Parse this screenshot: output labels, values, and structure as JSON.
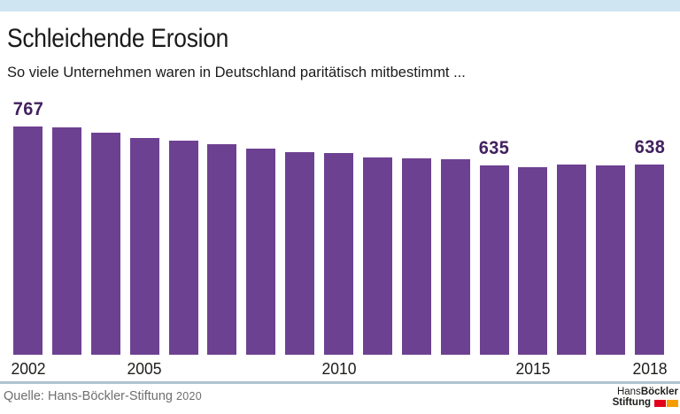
{
  "chart_data": {
    "type": "bar",
    "title": "Schleichende Erosion",
    "subtitle": "So viele Unternehmen waren in Deutschland paritätisch mitbestimmt ...",
    "categories": [
      2002,
      2003,
      2004,
      2005,
      2006,
      2007,
      2008,
      2009,
      2010,
      2011,
      2012,
      2013,
      2014,
      2015,
      2016,
      2017,
      2018
    ],
    "values": [
      767,
      765,
      746,
      728,
      719,
      708,
      693,
      681,
      679,
      662,
      660,
      657,
      635,
      630,
      638,
      635,
      638
    ],
    "labeled_years": [
      2002,
      2014,
      2018
    ],
    "x_tick_years": [
      2002,
      2005,
      2010,
      2015,
      2018
    ],
    "xlabel": "",
    "ylabel": "",
    "ylim": [
      0,
      895
    ],
    "grid": false,
    "legend": "none",
    "bar_color": "#6d4191",
    "value_label_color": "#42215f"
  },
  "colors": {
    "top_accent_bar": "#cfe5f2",
    "separator_line": "#aec3d0",
    "logo_red": "#e2001a",
    "logo_orange": "#f59c00"
  },
  "footer": {
    "source_label": "Quelle: Hans-Böckler-Stiftung",
    "source_year": "2020"
  },
  "logo": {
    "line1_regular": "Hans ",
    "line1_bold": "Böckler",
    "line2_bold": "Stiftung"
  }
}
